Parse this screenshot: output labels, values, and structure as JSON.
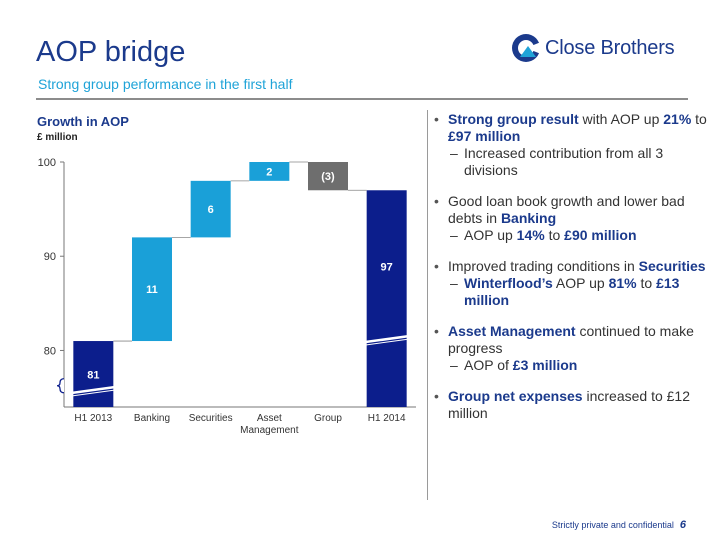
{
  "header": {
    "title": "AOP bridge",
    "subtitle": "Strong group performance in the first half",
    "logo_text": "Close Brothers"
  },
  "chart_data": {
    "type": "bar",
    "subtype": "waterfall",
    "title": "Growth in AOP",
    "unit_label": "£ million",
    "categories": [
      "H1 2013",
      "Banking",
      "Securities",
      "Asset\nManagement",
      "Group",
      "H1 2014"
    ],
    "values": [
      81,
      11,
      6,
      2,
      -3,
      97
    ],
    "value_labels": [
      "81",
      "11",
      "6",
      "2",
      "(3)",
      "97"
    ],
    "kinds": [
      "total",
      "increase",
      "increase",
      "increase",
      "decrease",
      "total"
    ],
    "colors": {
      "total": "#0c1e8c",
      "increase": "#1aa0d8",
      "decrease": "#6e6e6e"
    },
    "yticks": [
      80,
      90,
      100
    ],
    "ylim": [
      74,
      100
    ],
    "axis_break": true,
    "grid": false
  },
  "bullets": [
    {
      "level": 1,
      "parts": [
        {
          "t": "Strong group result",
          "b": true
        },
        {
          "t": " with AOP up "
        },
        {
          "t": "21%",
          "b": true
        },
        {
          "t": " to "
        },
        {
          "t": "£97 million",
          "b": true
        }
      ]
    },
    {
      "level": 2,
      "parts": [
        {
          "t": "Increased contribution from all 3 divisions"
        }
      ]
    },
    {
      "level": 1,
      "parts": [
        {
          "t": "Good loan book growth and lower bad debts in "
        },
        {
          "t": "Banking",
          "b": true
        }
      ]
    },
    {
      "level": 2,
      "parts": [
        {
          "t": "AOP up "
        },
        {
          "t": "14%",
          "b": true
        },
        {
          "t": " to "
        },
        {
          "t": "£90 million",
          "b": true
        }
      ]
    },
    {
      "level": 1,
      "parts": [
        {
          "t": "Improved trading conditions in "
        },
        {
          "t": "Securities",
          "b": true
        }
      ]
    },
    {
      "level": 2,
      "parts": [
        {
          "t": "Winterflood’s",
          "b": true
        },
        {
          "t": "  AOP up "
        },
        {
          "t": "81%",
          "b": true
        },
        {
          "t": " to "
        },
        {
          "t": "£13 million",
          "b": true
        }
      ]
    },
    {
      "level": 1,
      "parts": [
        {
          "t": "Asset Management",
          "b": true
        },
        {
          "t": " continued to make progress"
        }
      ]
    },
    {
      "level": 2,
      "parts": [
        {
          "t": "AOP of "
        },
        {
          "t": "£3 million",
          "b": true
        }
      ]
    },
    {
      "level": 1,
      "parts": [
        {
          "t": "Group net expenses",
          "b": true
        },
        {
          "t": " increased to £12 million"
        }
      ]
    }
  ],
  "footer": {
    "confidential": "Strictly private and confidential",
    "page": "6"
  }
}
